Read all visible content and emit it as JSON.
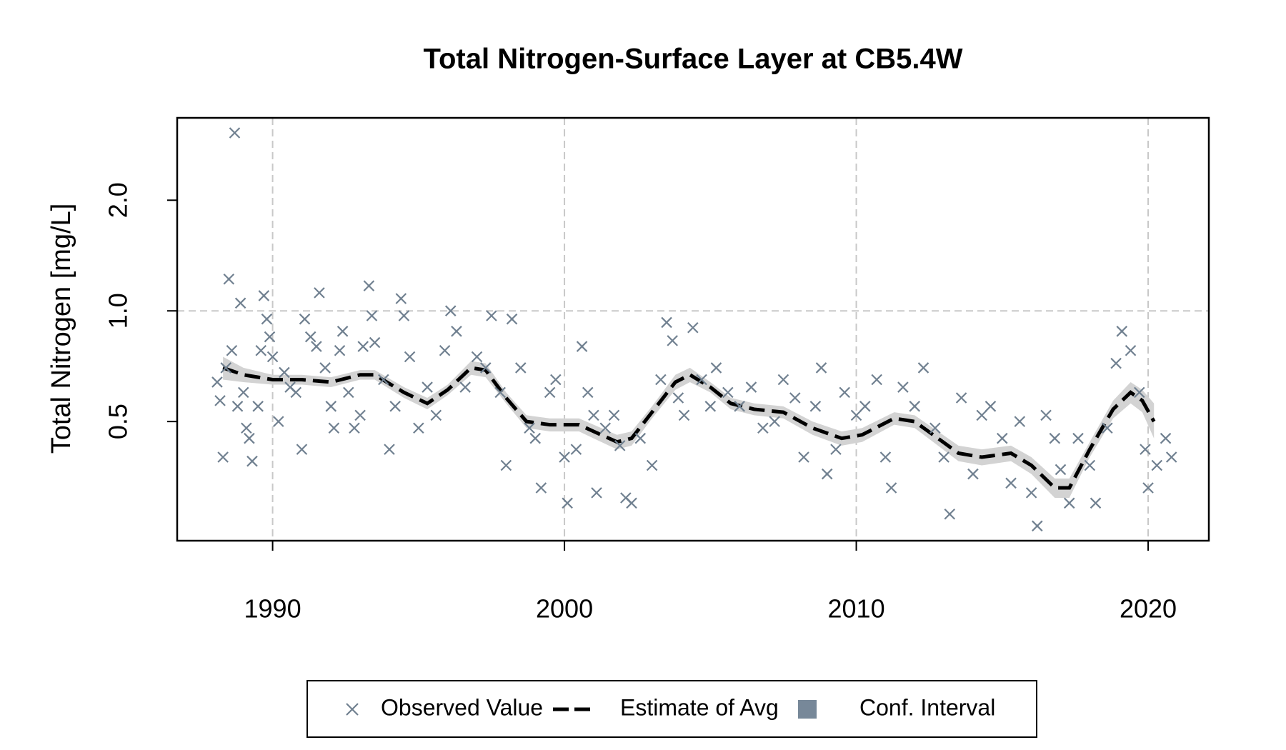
{
  "chart_data": {
    "type": "scatter",
    "title": "Total Nitrogen-Surface Layer at CB5.4W",
    "y_label": "Total Nitrogen [mg/L]",
    "log_y": true,
    "xlim": [
      1986.73,
      2022.08
    ],
    "ylim": [
      0.237,
      3.35
    ],
    "xticks": [
      1990,
      2000,
      2010,
      2020
    ],
    "yticks": [
      0.5,
      {
        "value": 1.0,
        "label": "1.0"
      },
      {
        "value": 2.0,
        "label": "2.0"
      }
    ],
    "grid_x": true,
    "grid_y_at": [
      1.0
    ],
    "legend": "bottom",
    "series": [
      {
        "name": "Observed Value",
        "type": "scatter",
        "color": "#708090",
        "x": [
          1988.1,
          1988.2,
          1988.3,
          1988.4,
          1988.5,
          1988.6,
          1988.7,
          1988.8,
          1988.9,
          1989.0,
          1989.1,
          1989.2,
          1989.3,
          1989.5,
          1989.6,
          1989.7,
          1989.8,
          1989.9,
          1990.0,
          1990.2,
          1990.4,
          1990.6,
          1990.8,
          1991.0,
          1991.1,
          1991.3,
          1991.5,
          1991.6,
          1991.8,
          1992.0,
          1992.1,
          1992.3,
          1992.4,
          1992.6,
          1992.8,
          1993.0,
          1993.1,
          1993.3,
          1993.4,
          1993.5,
          1993.8,
          1994.0,
          1994.2,
          1994.4,
          1994.5,
          1994.7,
          1995.0,
          1995.3,
          1995.6,
          1995.9,
          1996.1,
          1996.3,
          1996.6,
          1997.0,
          1997.3,
          1997.5,
          1997.8,
          1998.0,
          1998.2,
          1998.5,
          1998.8,
          1999.0,
          1999.2,
          1999.5,
          1999.7,
          2000.0,
          2000.1,
          2000.4,
          2000.6,
          2000.8,
          2001.0,
          2001.1,
          2001.4,
          2001.7,
          2001.9,
          2002.1,
          2002.3,
          2002.6,
          2003.0,
          2003.3,
          2003.5,
          2003.7,
          2003.9,
          2004.1,
          2004.4,
          2004.7,
          2005.0,
          2005.2,
          2005.6,
          2006.0,
          2006.4,
          2006.8,
          2007.2,
          2007.5,
          2007.9,
          2008.2,
          2008.6,
          2008.8,
          2009.0,
          2009.3,
          2009.6,
          2010.0,
          2010.3,
          2010.7,
          2011.0,
          2011.2,
          2011.6,
          2012.0,
          2012.3,
          2012.7,
          2013.0,
          2013.2,
          2013.6,
          2014.0,
          2014.3,
          2014.6,
          2015.0,
          2015.3,
          2015.6,
          2016.0,
          2016.2,
          2016.5,
          2016.8,
          2017.0,
          2017.3,
          2017.6,
          2018.0,
          2018.2,
          2018.6,
          2018.9,
          2019.1,
          2019.4,
          2019.7,
          2019.9,
          2020.0,
          2020.3,
          2020.6,
          2020.8
        ],
        "values": [
          0.64,
          0.57,
          0.4,
          0.7,
          1.22,
          0.78,
          3.05,
          0.55,
          1.05,
          0.6,
          0.48,
          0.45,
          0.39,
          0.55,
          0.78,
          1.1,
          0.95,
          0.85,
          0.75,
          0.5,
          0.68,
          0.62,
          0.6,
          0.42,
          0.95,
          0.85,
          0.8,
          1.12,
          0.7,
          0.55,
          0.48,
          0.78,
          0.88,
          0.6,
          0.48,
          0.52,
          0.8,
          1.17,
          0.97,
          0.82,
          0.65,
          0.42,
          0.55,
          1.08,
          0.97,
          0.75,
          0.48,
          0.62,
          0.52,
          0.78,
          1.0,
          0.88,
          0.62,
          0.75,
          0.7,
          0.97,
          0.6,
          0.38,
          0.95,
          0.7,
          0.48,
          0.45,
          0.33,
          0.6,
          0.65,
          0.4,
          0.3,
          0.42,
          0.8,
          0.6,
          0.52,
          0.32,
          0.48,
          0.52,
          0.43,
          0.31,
          0.3,
          0.45,
          0.38,
          0.65,
          0.93,
          0.83,
          0.58,
          0.52,
          0.9,
          0.65,
          0.55,
          0.7,
          0.6,
          0.55,
          0.62,
          0.48,
          0.5,
          0.65,
          0.58,
          0.4,
          0.55,
          0.7,
          0.36,
          0.42,
          0.6,
          0.52,
          0.55,
          0.65,
          0.4,
          0.33,
          0.62,
          0.55,
          0.7,
          0.48,
          0.4,
          0.28,
          0.58,
          0.36,
          0.52,
          0.55,
          0.45,
          0.34,
          0.5,
          0.32,
          0.26,
          0.52,
          0.45,
          0.37,
          0.3,
          0.45,
          0.38,
          0.3,
          0.48,
          0.72,
          0.88,
          0.78,
          0.6,
          0.42,
          0.33,
          0.38,
          0.45,
          0.4
        ]
      },
      {
        "name": "Estimate of Avg",
        "type": "line",
        "color": "#000000",
        "x": [
          1988.3,
          1989,
          1990,
          1991,
          1992,
          1993,
          1993.5,
          1994.5,
          1995.3,
          1996,
          1996.8,
          1997.3,
          1998,
          1998.7,
          1999.5,
          2000.5,
          2001,
          2001.8,
          2002.3,
          2003,
          2003.8,
          2004.3,
          2005,
          2005.7,
          2006.5,
          2007.5,
          2008.5,
          2009.5,
          2010.2,
          2011.3,
          2012,
          2012.8,
          2013.5,
          2014.3,
          2015.3,
          2016,
          2016.8,
          2017.3,
          2018,
          2018.8,
          2019.4,
          2019.8,
          2020.2
        ],
        "values": [
          0.7,
          0.67,
          0.65,
          0.65,
          0.64,
          0.67,
          0.67,
          0.6,
          0.56,
          0.61,
          0.7,
          0.69,
          0.58,
          0.5,
          0.49,
          0.49,
          0.47,
          0.44,
          0.45,
          0.53,
          0.64,
          0.67,
          0.62,
          0.56,
          0.54,
          0.53,
          0.48,
          0.45,
          0.46,
          0.51,
          0.5,
          0.45,
          0.41,
          0.4,
          0.41,
          0.38,
          0.33,
          0.33,
          0.42,
          0.54,
          0.6,
          0.57,
          0.5
        ]
      },
      {
        "name": "Conf. Interval",
        "type": "band",
        "color": "#d3d3d3",
        "legend_color": "#778899",
        "x": [
          1988.3,
          1989,
          1990,
          1991,
          1992,
          1993,
          1993.5,
          1994.5,
          1995.3,
          1996,
          1996.8,
          1997.3,
          1998,
          1998.7,
          1999.5,
          2000.5,
          2001,
          2001.8,
          2002.3,
          2003,
          2003.8,
          2004.3,
          2005,
          2005.7,
          2006.5,
          2007.5,
          2008.5,
          2009.5,
          2010.2,
          2011.3,
          2012,
          2012.8,
          2013.5,
          2014.3,
          2015.3,
          2016,
          2016.8,
          2017.3,
          2018,
          2018.8,
          2019.4,
          2019.8,
          2020.2
        ],
        "lower": [
          0.65,
          0.64,
          0.63,
          0.63,
          0.62,
          0.65,
          0.65,
          0.58,
          0.54,
          0.59,
          0.67,
          0.66,
          0.56,
          0.48,
          0.47,
          0.47,
          0.45,
          0.42,
          0.43,
          0.51,
          0.61,
          0.64,
          0.6,
          0.54,
          0.52,
          0.51,
          0.46,
          0.43,
          0.44,
          0.49,
          0.48,
          0.43,
          0.39,
          0.38,
          0.39,
          0.36,
          0.31,
          0.31,
          0.4,
          0.51,
          0.56,
          0.53,
          0.45
        ],
        "upper": [
          0.75,
          0.7,
          0.67,
          0.67,
          0.66,
          0.69,
          0.69,
          0.62,
          0.58,
          0.63,
          0.73,
          0.72,
          0.6,
          0.52,
          0.51,
          0.51,
          0.49,
          0.46,
          0.47,
          0.55,
          0.67,
          0.7,
          0.64,
          0.58,
          0.56,
          0.55,
          0.5,
          0.47,
          0.48,
          0.53,
          0.52,
          0.47,
          0.43,
          0.42,
          0.43,
          0.4,
          0.35,
          0.35,
          0.44,
          0.57,
          0.64,
          0.61,
          0.56
        ]
      }
    ]
  }
}
